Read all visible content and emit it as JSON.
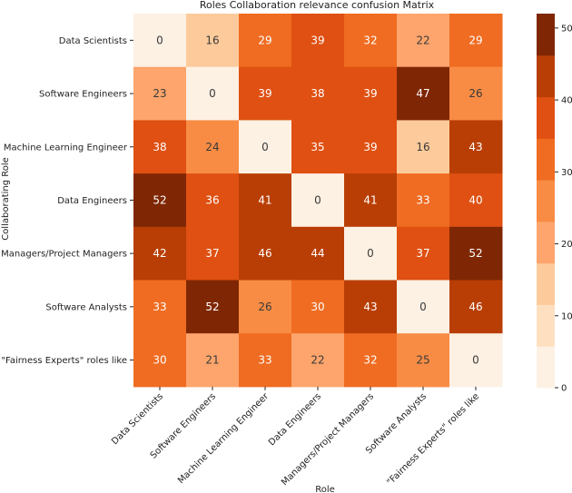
{
  "chart_data": {
    "type": "heatmap",
    "title": "Roles Collaboration relevance confusion Matrix",
    "xlabel": "Role",
    "ylabel": "Collaborating Role",
    "x_categories": [
      "Data Scientists",
      "Software Engineers",
      "Machine Learning Engineer",
      "Data Engineers",
      "Managers/Project Managers",
      "Software Analysts",
      "\"Fairness Experts\" roles like"
    ],
    "y_categories": [
      "Data Scientists",
      "Software Engineers",
      "Machine Learning Engineer",
      "Data Engineers",
      "Managers/Project Managers",
      "Software Analysts",
      "\"Fairness Experts\" roles like"
    ],
    "values": [
      [
        0,
        16,
        29,
        39,
        32,
        22,
        29
      ],
      [
        23,
        0,
        39,
        38,
        39,
        47,
        26
      ],
      [
        38,
        24,
        0,
        35,
        39,
        16,
        43
      ],
      [
        52,
        36,
        41,
        0,
        41,
        33,
        40
      ],
      [
        42,
        37,
        46,
        44,
        0,
        37,
        52
      ],
      [
        33,
        52,
        26,
        30,
        43,
        0,
        46
      ],
      [
        30,
        21,
        33,
        22,
        32,
        25,
        0
      ]
    ],
    "colorbar": {
      "ticks": [
        0,
        10,
        20,
        30,
        40,
        50
      ],
      "range": [
        0,
        52
      ],
      "levels": 9,
      "colors": [
        "#fdf1e4",
        "#fee0c1",
        "#fdcb9b",
        "#fda56c",
        "#f88c44",
        "#ef6c22",
        "#df5012",
        "#b93e05",
        "#7f2704"
      ]
    }
  }
}
